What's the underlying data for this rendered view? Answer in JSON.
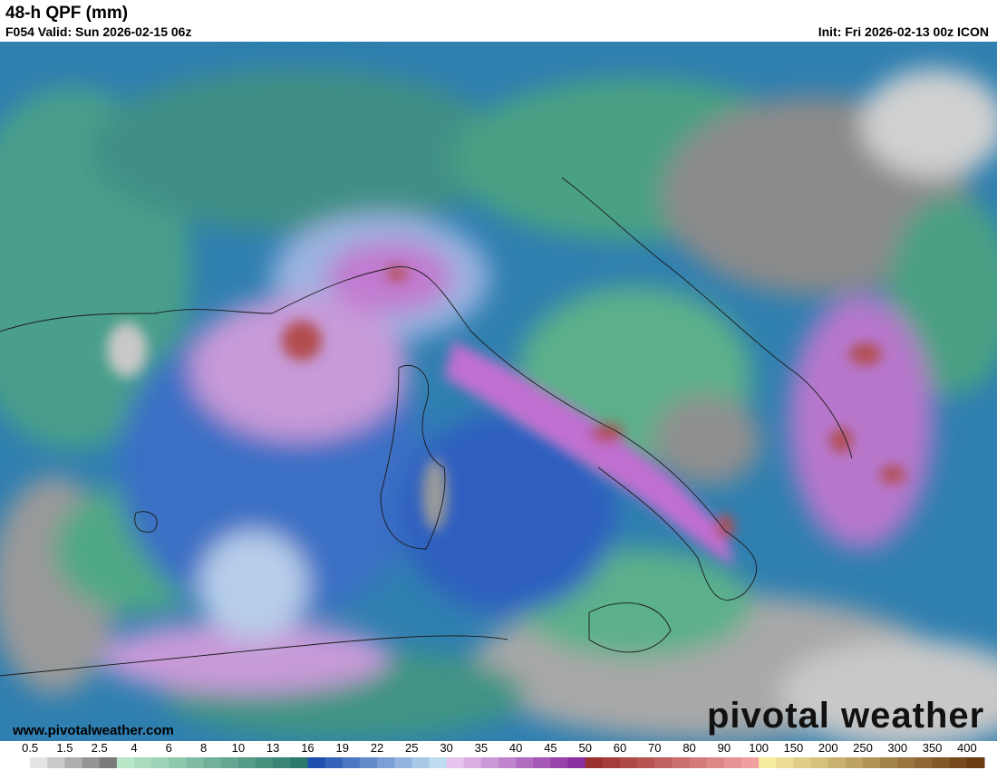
{
  "header": {
    "title": "48-h QPF (mm)",
    "valid": "F054 Valid: Sun 2026-02-15 06z",
    "init": "Init: Fri 2026-02-13 00z ICON"
  },
  "watermark": {
    "url": "www.pivotalweather.com",
    "brand": "pivotal weather"
  },
  "legend": {
    "ticks": [
      0.5,
      1.5,
      2.5,
      4,
      6,
      8,
      10,
      13,
      16,
      19,
      22,
      25,
      30,
      35,
      40,
      45,
      50,
      60,
      70,
      80,
      90,
      100,
      150,
      200,
      250,
      300,
      350,
      400
    ]
  }
}
